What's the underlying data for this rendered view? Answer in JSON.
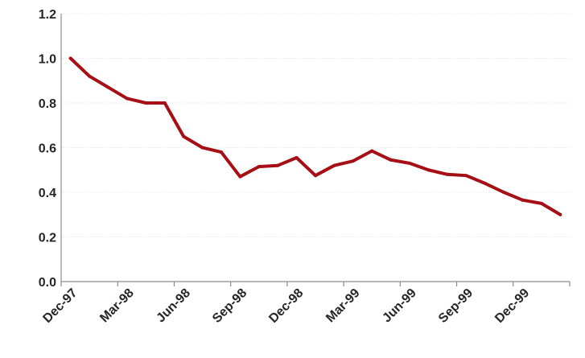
{
  "chart_data": {
    "type": "line",
    "title": "",
    "xlabel": "",
    "ylabel": "",
    "x": [
      "Dec-97",
      "Jan-98",
      "Feb-98",
      "Mar-98",
      "Apr-98",
      "May-98",
      "Jun-98",
      "Jul-98",
      "Aug-98",
      "Sep-98",
      "Oct-98",
      "Nov-98",
      "Dec-98",
      "Jan-99",
      "Feb-99",
      "Mar-99",
      "Apr-99",
      "May-99",
      "Jun-99",
      "Jul-99",
      "Aug-99",
      "Sep-99",
      "Oct-99",
      "Nov-99",
      "Dec-99",
      "Jan-00",
      "Feb-00"
    ],
    "series": [
      {
        "color": "#a50f15",
        "values": [
          1.0,
          0.92,
          0.87,
          0.82,
          0.8,
          0.8,
          0.65,
          0.6,
          0.58,
          0.47,
          0.515,
          0.52,
          0.555,
          0.475,
          0.52,
          0.54,
          0.585,
          0.545,
          0.53,
          0.5,
          0.48,
          0.475,
          0.44,
          0.4,
          0.365,
          0.35,
          0.3
        ]
      }
    ],
    "x_tick_labels": [
      "Dec-97",
      "Mar-98",
      "Jun-98",
      "Sep-98",
      "Dec-98",
      "Mar-99",
      "Jun-99",
      "Sep-99",
      "Dec-99"
    ],
    "y_ticks": [
      "0.0",
      "0.2",
      "0.4",
      "0.6",
      "0.8",
      "1.0",
      "1.2"
    ],
    "ylim": [
      0,
      1.2
    ],
    "grid": true,
    "legend": "none"
  }
}
